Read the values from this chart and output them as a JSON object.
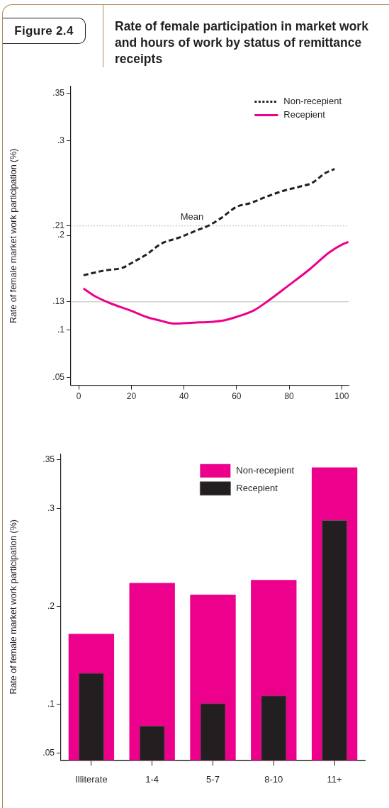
{
  "chart_data": [
    {
      "type": "line",
      "title": "Rate of female participation in market work and hours of work by status of remittance receipts",
      "annotations": [
        "Figure 2.4"
      ],
      "ylabel": "Rate of female market work participation (%)",
      "xlim": [
        -3,
        102.6
      ],
      "xticks": [
        0,
        20,
        40,
        60,
        80,
        100
      ],
      "ylim": [
        0.042,
        0.357
      ],
      "yticks": [
        {
          "value": 0.05,
          "label": ".05"
        },
        {
          "value": 0.1,
          "label": ".1"
        },
        {
          "value": 0.13,
          "label": ".13"
        },
        {
          "value": 0.2,
          "label": ".2"
        },
        {
          "value": 0.21,
          "label": ".21"
        },
        {
          "value": 0.3,
          "label": ".3"
        },
        {
          "value": 0.35,
          "label": ".35"
        }
      ],
      "ref_lines": [
        {
          "axis": "y",
          "value": 0.21,
          "label": "Mean",
          "color": "#bbbbbb",
          "line_style": "dotted"
        },
        {
          "axis": "y",
          "value": 0.13,
          "label": null,
          "color": "#bbbbbb",
          "line_style": "solid"
        }
      ],
      "legend": "top right",
      "marker": "none",
      "grid": false,
      "series": [
        {
          "name": "Non-recepient",
          "color": "#231f20",
          "line_style": "dashed",
          "x": [
            1.8,
            9.7,
            16.8,
            19.5,
            25.8,
            31.2,
            38.4,
            45.5,
            49.1,
            54.5,
            59.9,
            65.2,
            70.6,
            77.8,
            84.9,
            88.5,
            93.9,
            97.3
          ],
          "values": [
            0.158,
            0.163,
            0.166,
            0.17,
            0.18,
            0.191,
            0.198,
            0.206,
            0.21,
            0.219,
            0.23,
            0.234,
            0.24,
            0.247,
            0.252,
            0.255,
            0.266,
            0.27
          ]
        },
        {
          "name": "Recepient",
          "color": "#ec008c",
          "line_style": "solid",
          "x": [
            1.8,
            6.1,
            12.4,
            19.5,
            25.8,
            31.2,
            36.6,
            43.7,
            50.9,
            54.5,
            59.9,
            66.6,
            72.0,
            79.2,
            88.1,
            95.2,
            100.6,
            102.5
          ],
          "values": [
            0.144,
            0.136,
            0.128,
            0.121,
            0.114,
            0.11,
            0.107,
            0.108,
            0.109,
            0.11,
            0.114,
            0.121,
            0.131,
            0.146,
            0.165,
            0.182,
            0.191,
            0.193
          ]
        }
      ]
    },
    {
      "type": "bar",
      "ylabel": "Rate of female market work participation (%)",
      "categories": [
        "Illiterate",
        "1-4",
        "5-7",
        "8-10",
        "11+"
      ],
      "ylim": [
        0.043,
        0.356
      ],
      "yticks": [
        {
          "value": 0.05,
          "label": ".05"
        },
        {
          "value": 0.1,
          "label": ".1"
        },
        {
          "value": 0.2,
          "label": ".2"
        },
        {
          "value": 0.3,
          "label": ".3"
        },
        {
          "value": 0.35,
          "label": ".35"
        }
      ],
      "legend": "top right",
      "grid": false,
      "series": [
        {
          "name": "Non-recepient",
          "color": "#ec008c",
          "values": [
            0.172,
            0.224,
            0.212,
            0.227,
            0.342
          ]
        },
        {
          "name": "Recepient",
          "color": "#231f20",
          "values": [
            0.132,
            0.078,
            0.101,
            0.109,
            0.288
          ]
        }
      ]
    }
  ]
}
